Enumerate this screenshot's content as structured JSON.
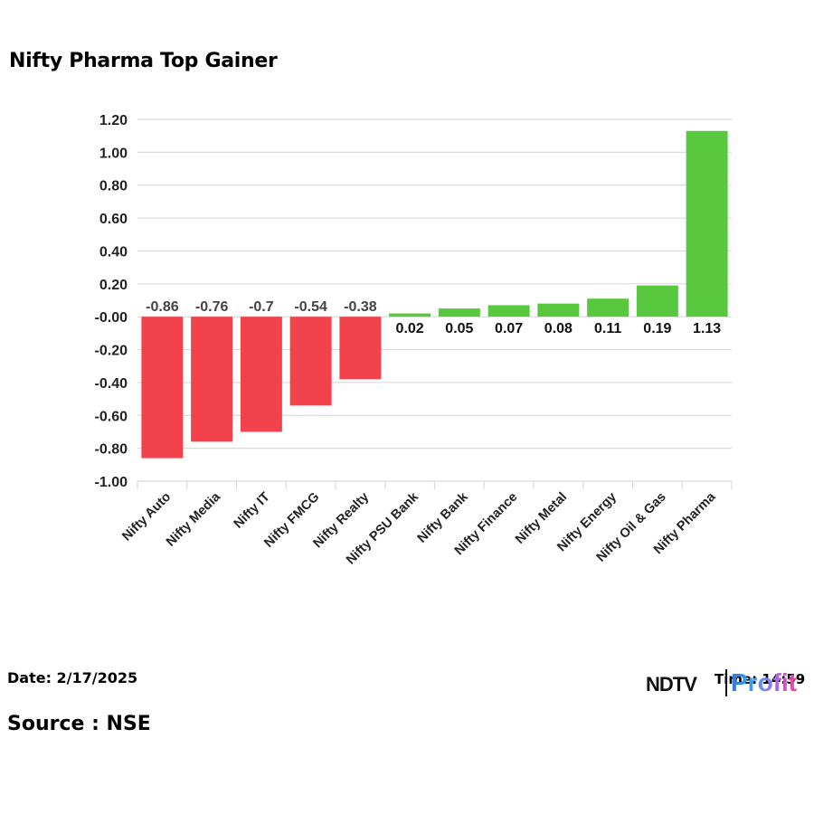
{
  "header": {
    "title": "Nifty Pharma Top Gainer"
  },
  "footer": {
    "date": "Date: 2/17/2025",
    "source": "Source : NSE",
    "time": "Time: 14:59",
    "logo": {
      "brand": "NDTV",
      "product": "Profit"
    }
  },
  "colors": {
    "positive": "#5ac83f",
    "negative": "#f2424c",
    "grid": "#dcdcdc",
    "axis_text": "#222222",
    "neg_label": "#444444"
  },
  "chart_data": {
    "type": "bar",
    "title": "Nifty Pharma Top Gainer",
    "xlabel": "",
    "ylabel": "",
    "ylim": [
      -1.0,
      1.2
    ],
    "yticks": [
      "1.20",
      "1.00",
      "0.80",
      "0.60",
      "0.40",
      "0.20",
      "-0.00",
      "-0.20",
      "-0.40",
      "-0.60",
      "-0.80",
      "-1.00"
    ],
    "grid": true,
    "legend": null,
    "categories": [
      "Nifty Auto",
      "Nifty Media",
      "Nifty IT",
      "Nifty FMCG",
      "Nifty Realty",
      "Nifty PSU Bank",
      "Nifty Bank",
      "Nifty Finance",
      "Nifty Metal",
      "Nifty Energy",
      "Nifty Oil & Gas",
      "Nifty Pharma"
    ],
    "values": [
      -0.86,
      -0.76,
      -0.7,
      -0.54,
      -0.38,
      0.02,
      0.05,
      0.07,
      0.08,
      0.11,
      0.19,
      1.13
    ],
    "labels": [
      "-0.86",
      "-0.76",
      "-0.7",
      "-0.54",
      "-0.38",
      "0.02",
      "0.05",
      "0.07",
      "0.08",
      "0.11",
      "0.19",
      "1.13"
    ]
  }
}
